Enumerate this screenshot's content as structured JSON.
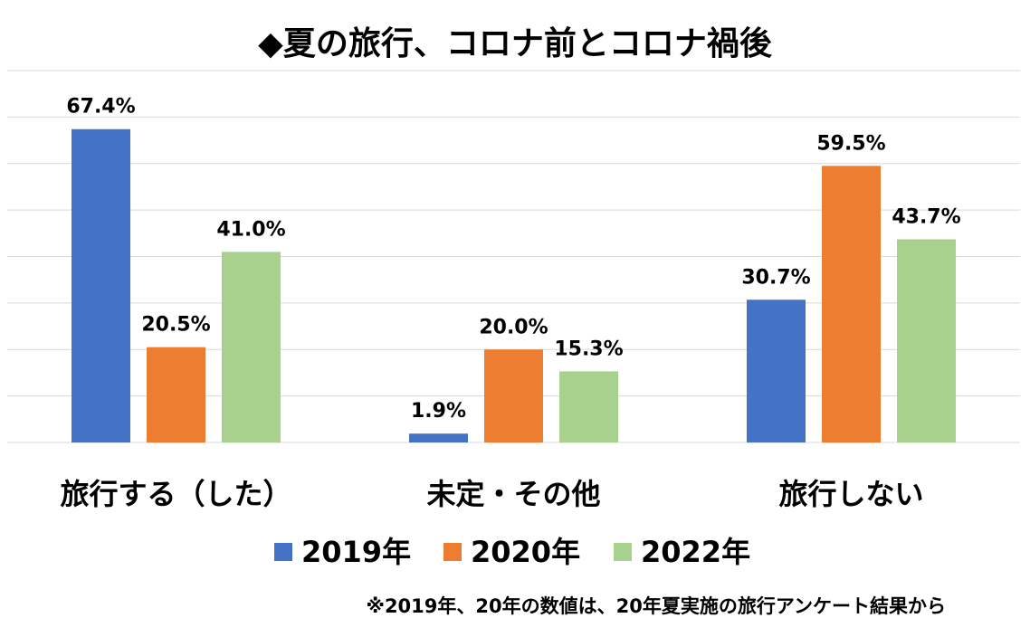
{
  "chart_data": {
    "type": "bar",
    "title": "◆夏の旅行、コロナ前とコロナ禍後",
    "categories": [
      "旅行する（した）",
      "未定・その他",
      "旅行しない"
    ],
    "series": [
      {
        "name": "2019年",
        "color": "#4472c4",
        "values": [
          67.4,
          1.9,
          30.7
        ],
        "labels": [
          "67.4%",
          "1.9%",
          "30.7%"
        ]
      },
      {
        "name": "2020年",
        "color": "#ed7d31",
        "values": [
          20.5,
          20.0,
          59.5
        ],
        "labels": [
          "20.5%",
          "20.0%",
          "59.5%"
        ]
      },
      {
        "name": "2022年",
        "color": "#a9d18e",
        "values": [
          41.0,
          15.3,
          43.7
        ],
        "labels": [
          "41.0%",
          "15.3%",
          "43.7%"
        ]
      }
    ],
    "ylim": [
      0,
      80
    ],
    "grid": true,
    "legend_position": "bottom",
    "note": "※2019年、20年の数値は、20年夏実施の旅行アンケート結果から"
  }
}
